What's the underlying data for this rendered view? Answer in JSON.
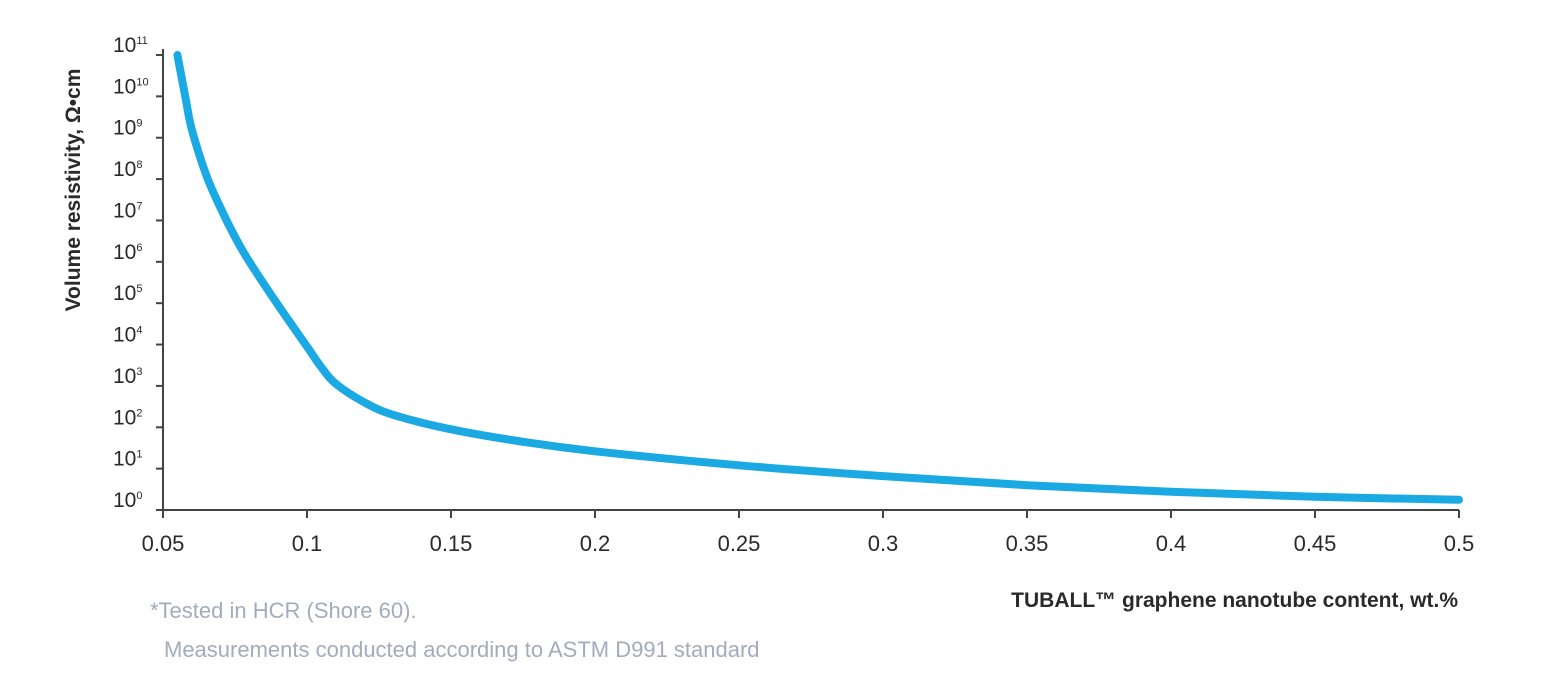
{
  "chart_data": {
    "type": "line",
    "title": "",
    "xlabel": "TUBALL™ graphene nanotube content, wt.%",
    "ylabel": "Volume resistivity, Ω•cm",
    "yscale": "log",
    "xlim": [
      0.05,
      0.5
    ],
    "ylim_exponents": [
      0,
      11
    ],
    "x_ticks": [
      "0.05",
      "0.1",
      "0.15",
      "0.2",
      "0.25",
      "0.3",
      "0.35",
      "0.4",
      "0.45",
      "0.5"
    ],
    "x_tick_values": [
      0.05,
      0.1,
      0.15,
      0.2,
      0.25,
      0.3,
      0.35,
      0.4,
      0.45,
      0.5
    ],
    "y_tick_base": "10",
    "y_tick_exponents": [
      "0",
      "1",
      "2",
      "3",
      "4",
      "5",
      "6",
      "7",
      "8",
      "9",
      "10",
      "11"
    ],
    "grid": false,
    "series": [
      {
        "name": "Volume resistivity",
        "color": "#1aa9e3",
        "x": [
          0.055,
          0.058,
          0.06,
          0.065,
          0.07,
          0.075,
          0.08,
          0.09,
          0.1,
          0.105,
          0.11,
          0.12,
          0.13,
          0.15,
          0.175,
          0.2,
          0.25,
          0.3,
          0.35,
          0.4,
          0.45,
          0.5
        ],
        "log10_y": [
          11.0,
          9.9,
          9.2,
          8.1,
          7.3,
          6.6,
          6.0,
          4.95,
          3.95,
          3.45,
          3.05,
          2.6,
          2.3,
          1.95,
          1.65,
          1.42,
          1.08,
          0.82,
          0.6,
          0.44,
          0.32,
          0.25
        ]
      }
    ]
  },
  "footnotes": {
    "line1": "*Tested in HCR (Shore 60).",
    "line2": "Measurements conducted according to ASTM D991 standard"
  },
  "colors": {
    "line": "#1aa9e3",
    "axis": "#444444",
    "text": "#2a2a2a",
    "footnote": "#a3acbb"
  }
}
